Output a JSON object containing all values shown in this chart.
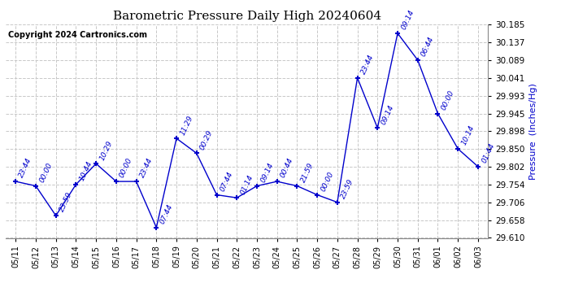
{
  "title": "Barometric Pressure Daily High 20240604",
  "copyright": "Copyright 2024 Cartronics.com",
  "ylabel": "Pressure  (Inches/Hg)",
  "ylim": [
    29.61,
    30.185
  ],
  "yticks": [
    29.61,
    29.658,
    29.706,
    29.754,
    29.802,
    29.85,
    29.898,
    29.945,
    29.993,
    30.041,
    30.089,
    30.137,
    30.185
  ],
  "background_color": "#ffffff",
  "grid_color": "#c8c8c8",
  "line_color": "#0000cc",
  "text_color": "#0000cc",
  "title_color": "#000000",
  "dates": [
    "05/11",
    "05/12",
    "05/13",
    "05/14",
    "05/15",
    "05/16",
    "05/17",
    "05/18",
    "05/19",
    "05/20",
    "05/21",
    "05/22",
    "05/23",
    "05/24",
    "05/25",
    "05/26",
    "05/27",
    "05/28",
    "05/29",
    "05/30",
    "05/31",
    "06/01",
    "06/02",
    "06/03"
  ],
  "values": [
    29.762,
    29.75,
    29.67,
    29.754,
    29.81,
    29.762,
    29.762,
    29.638,
    29.878,
    29.838,
    29.726,
    29.718,
    29.75,
    29.762,
    29.75,
    29.726,
    29.706,
    30.041,
    29.906,
    30.161,
    30.089,
    29.945,
    29.85,
    29.802
  ],
  "time_labels": [
    "23:44",
    "00:00",
    "23:59",
    "10:44",
    "10:29",
    "00:00",
    "23:44",
    "07:44",
    "11:29",
    "00:29",
    "07:44",
    "01:14",
    "09:14",
    "00:44",
    "21:59",
    "00:00",
    "23:59",
    "23:44",
    "09:14",
    "09:14",
    "06:44",
    "00:00",
    "10:14",
    "01:44"
  ],
  "label_rotation": 65,
  "label_fontsize": 6.5,
  "title_fontsize": 11,
  "copyright_fontsize": 7,
  "ytick_fontsize": 7.5,
  "xtick_fontsize": 7
}
